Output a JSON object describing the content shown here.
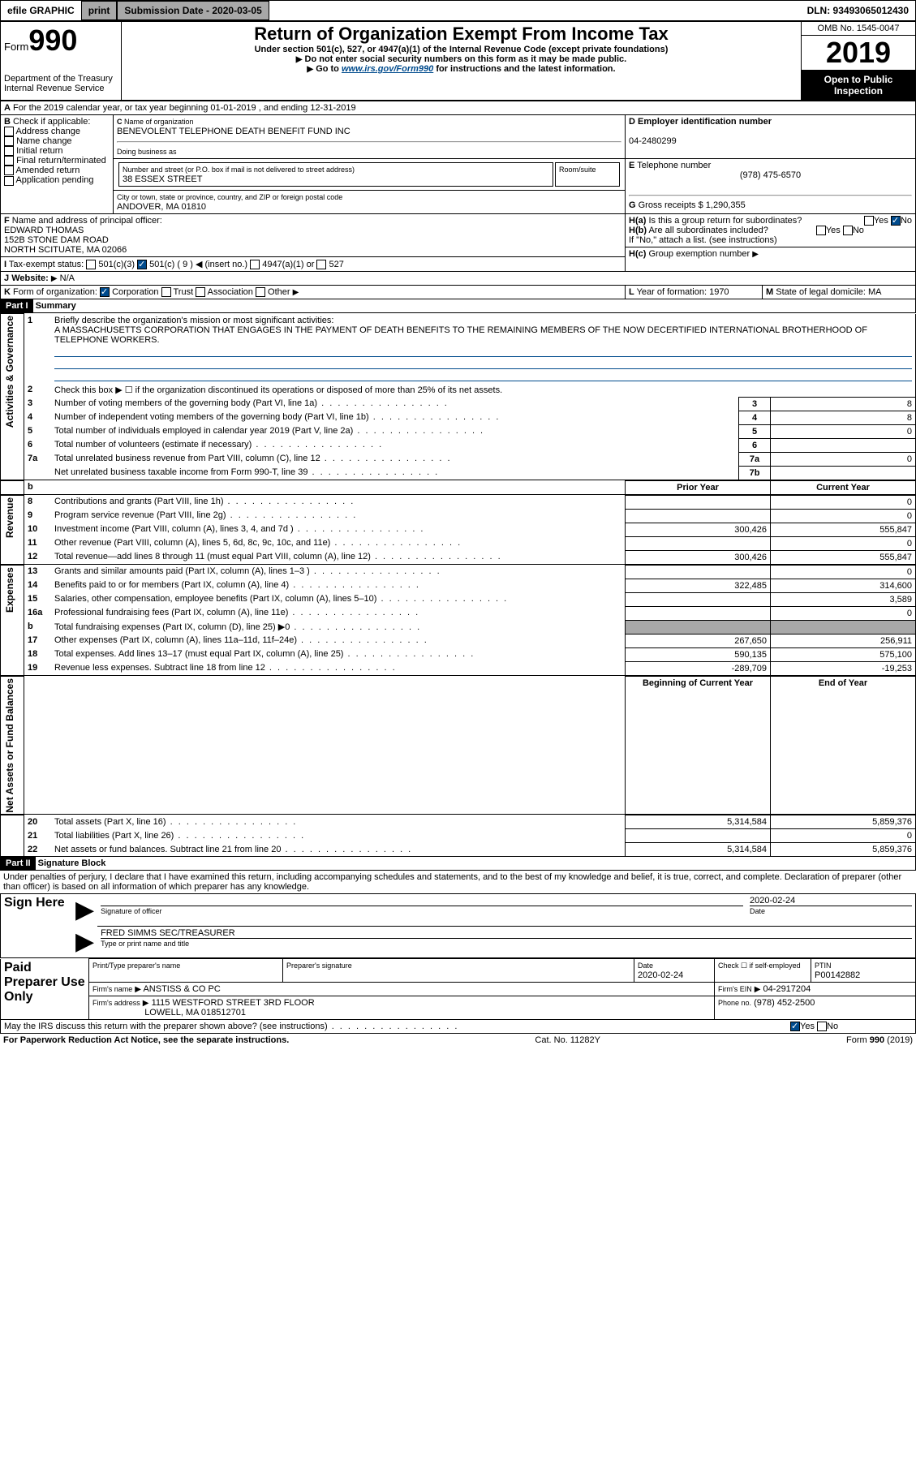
{
  "topbar": {
    "efile": "efile GRAPHIC",
    "print": "print",
    "subdate_label": "Submission Date - 2020-03-05",
    "dln": "DLN: 93493065012430"
  },
  "header": {
    "form": "990",
    "form_prefix": "Form",
    "dept": "Department of the Treasury",
    "irs": "Internal Revenue Service",
    "title": "Return of Organization Exempt From Income Tax",
    "sub1": "Under section 501(c), 527, or 4947(a)(1) of the Internal Revenue Code (except private foundations)",
    "sub2": "Do not enter social security numbers on this form as it may be made public.",
    "sub3_pre": "Go to ",
    "sub3_link": "www.irs.gov/Form990",
    "sub3_post": " for instructions and the latest information.",
    "omb": "OMB No. 1545-0047",
    "year": "2019",
    "open": "Open to Public Inspection"
  },
  "A": {
    "text": "For the 2019 calendar year, or tax year beginning 01-01-2019   , and ending 12-31-2019"
  },
  "B": {
    "label": "Check if applicable:",
    "items": [
      "Address change",
      "Name change",
      "Initial return",
      "Final return/terminated",
      "Amended return",
      "Application pending"
    ]
  },
  "C": {
    "name_label": "Name of organization",
    "name": "BENEVOLENT TELEPHONE DEATH BENEFIT FUND INC",
    "dba_label": "Doing business as",
    "addr_label": "Number and street (or P.O. box if mail is not delivered to street address)",
    "room_label": "Room/suite",
    "addr": "38 ESSEX STREET",
    "city_label": "City or town, state or province, country, and ZIP or foreign postal code",
    "city": "ANDOVER, MA  01810"
  },
  "D": {
    "label": "Employer identification number",
    "value": "04-2480299"
  },
  "E": {
    "label": "Telephone number",
    "value": "(978) 475-6570"
  },
  "G": {
    "label": "Gross receipts $",
    "value": "1,290,355"
  },
  "F": {
    "label": "Name and address of principal officer:",
    "name": "EDWARD THOMAS",
    "addr1": "152B STONE DAM ROAD",
    "addr2": "NORTH SCITUATE, MA  02066"
  },
  "H": {
    "a": "Is this a group return for subordinates?",
    "b": "Are all subordinates included?",
    "b_note": "If \"No,\" attach a list. (see instructions)",
    "c": "Group exemption number"
  },
  "I": {
    "label": "Tax-exempt status:",
    "opts": [
      "501(c)(3)",
      "501(c) ( 9 )",
      "4947(a)(1) or",
      "527"
    ],
    "insert": "(insert no.)"
  },
  "J": {
    "label": "Website:",
    "value": "N/A"
  },
  "K": {
    "label": "Form of organization:",
    "opts": [
      "Corporation",
      "Trust",
      "Association",
      "Other"
    ]
  },
  "L": {
    "label": "Year of formation:",
    "value": "1970"
  },
  "M": {
    "label": "State of legal domicile:",
    "value": "MA"
  },
  "part1": {
    "header": "Part I",
    "title": "Summary",
    "line1": "Briefly describe the organization's mission or most significant activities:",
    "mission": "A MASSACHUSETTS CORPORATION THAT ENGAGES IN THE PAYMENT OF DEATH BENEFITS TO THE REMAINING MEMBERS OF THE NOW DECERTIFIED INTERNATIONAL BROTHERHOOD OF TELEPHONE WORKERS.",
    "line2": "Check this box ▶ ☐ if the organization discontinued its operations or disposed of more than 25% of its net assets.",
    "sections": {
      "gov": "Activities & Governance",
      "rev": "Revenue",
      "exp": "Expenses",
      "net": "Net Assets or Fund Balances"
    },
    "rows_gov": [
      {
        "n": "3",
        "t": "Number of voting members of the governing body (Part VI, line 1a)",
        "box": "3",
        "v": "8"
      },
      {
        "n": "4",
        "t": "Number of independent voting members of the governing body (Part VI, line 1b)",
        "box": "4",
        "v": "8"
      },
      {
        "n": "5",
        "t": "Total number of individuals employed in calendar year 2019 (Part V, line 2a)",
        "box": "5",
        "v": "0"
      },
      {
        "n": "6",
        "t": "Total number of volunteers (estimate if necessary)",
        "box": "6",
        "v": ""
      },
      {
        "n": "7a",
        "t": "Total unrelated business revenue from Part VIII, column (C), line 12",
        "box": "7a",
        "v": "0"
      },
      {
        "n": "",
        "t": "Net unrelated business taxable income from Form 990-T, line 39",
        "box": "7b",
        "v": ""
      }
    ],
    "col_headers": {
      "b": "b",
      "prior": "Prior Year",
      "curr": "Current Year"
    },
    "rows_rev": [
      {
        "n": "8",
        "t": "Contributions and grants (Part VIII, line 1h)",
        "p": "",
        "c": "0"
      },
      {
        "n": "9",
        "t": "Program service revenue (Part VIII, line 2g)",
        "p": "",
        "c": "0"
      },
      {
        "n": "10",
        "t": "Investment income (Part VIII, column (A), lines 3, 4, and 7d )",
        "p": "300,426",
        "c": "555,847"
      },
      {
        "n": "11",
        "t": "Other revenue (Part VIII, column (A), lines 5, 6d, 8c, 9c, 10c, and 11e)",
        "p": "",
        "c": "0"
      },
      {
        "n": "12",
        "t": "Total revenue—add lines 8 through 11 (must equal Part VIII, column (A), line 12)",
        "p": "300,426",
        "c": "555,847"
      }
    ],
    "rows_exp": [
      {
        "n": "13",
        "t": "Grants and similar amounts paid (Part IX, column (A), lines 1–3 )",
        "p": "",
        "c": "0"
      },
      {
        "n": "14",
        "t": "Benefits paid to or for members (Part IX, column (A), line 4)",
        "p": "322,485",
        "c": "314,600"
      },
      {
        "n": "15",
        "t": "Salaries, other compensation, employee benefits (Part IX, column (A), lines 5–10)",
        "p": "",
        "c": "3,589"
      },
      {
        "n": "16a",
        "t": "Professional fundraising fees (Part IX, column (A), line 11e)",
        "p": "",
        "c": "0"
      },
      {
        "n": "b",
        "t": "Total fundraising expenses (Part IX, column (D), line 25) ▶0",
        "p": "",
        "c": "",
        "shaded": true
      },
      {
        "n": "17",
        "t": "Other expenses (Part IX, column (A), lines 11a–11d, 11f–24e)",
        "p": "267,650",
        "c": "256,911"
      },
      {
        "n": "18",
        "t": "Total expenses. Add lines 13–17 (must equal Part IX, column (A), line 25)",
        "p": "590,135",
        "c": "575,100"
      },
      {
        "n": "19",
        "t": "Revenue less expenses. Subtract line 18 from line 12",
        "p": "-289,709",
        "c": "-19,253"
      }
    ],
    "net_headers": {
      "beg": "Beginning of Current Year",
      "end": "End of Year"
    },
    "rows_net": [
      {
        "n": "20",
        "t": "Total assets (Part X, line 16)",
        "p": "5,314,584",
        "c": "5,859,376"
      },
      {
        "n": "21",
        "t": "Total liabilities (Part X, line 26)",
        "p": "",
        "c": "0"
      },
      {
        "n": "22",
        "t": "Net assets or fund balances. Subtract line 21 from line 20",
        "p": "5,314,584",
        "c": "5,859,376"
      }
    ]
  },
  "part2": {
    "header": "Part II",
    "title": "Signature Block",
    "perjury": "Under penalties of perjury, I declare that I have examined this return, including accompanying schedules and statements, and to the best of my knowledge and belief, it is true, correct, and complete. Declaration of preparer (other than officer) is based on all information of which preparer has any knowledge.",
    "sign_here": "Sign Here",
    "sig_label": "Signature of officer",
    "date_label": "Date",
    "date_val": "2020-02-24",
    "name": "FRED SIMMS  SEC/TREASURER",
    "name_label": "Type or print name and title",
    "paid": "Paid Preparer Use Only",
    "prep_name_label": "Print/Type preparer's name",
    "prep_sig_label": "Preparer's signature",
    "prep_date": "2020-02-24",
    "check_self": "Check ☐ if self-employed",
    "ptin_label": "PTIN",
    "ptin": "P00142882",
    "firm_name_label": "Firm's name",
    "firm_name": "ANSTISS & CO PC",
    "firm_ein_label": "Firm's EIN",
    "firm_ein": "04-2917204",
    "firm_addr_label": "Firm's address",
    "firm_addr1": "1115 WESTFORD STREET 3RD FLOOR",
    "firm_addr2": "LOWELL, MA  018512701",
    "phone_label": "Phone no.",
    "phone": "(978) 452-2500",
    "discuss": "May the IRS discuss this return with the preparer shown above? (see instructions)"
  },
  "footer": {
    "notice": "For Paperwork Reduction Act Notice, see the separate instructions.",
    "cat": "Cat. No. 11282Y",
    "form": "Form 990 (2019)"
  },
  "yesno": {
    "yes": "Yes",
    "no": "No"
  }
}
